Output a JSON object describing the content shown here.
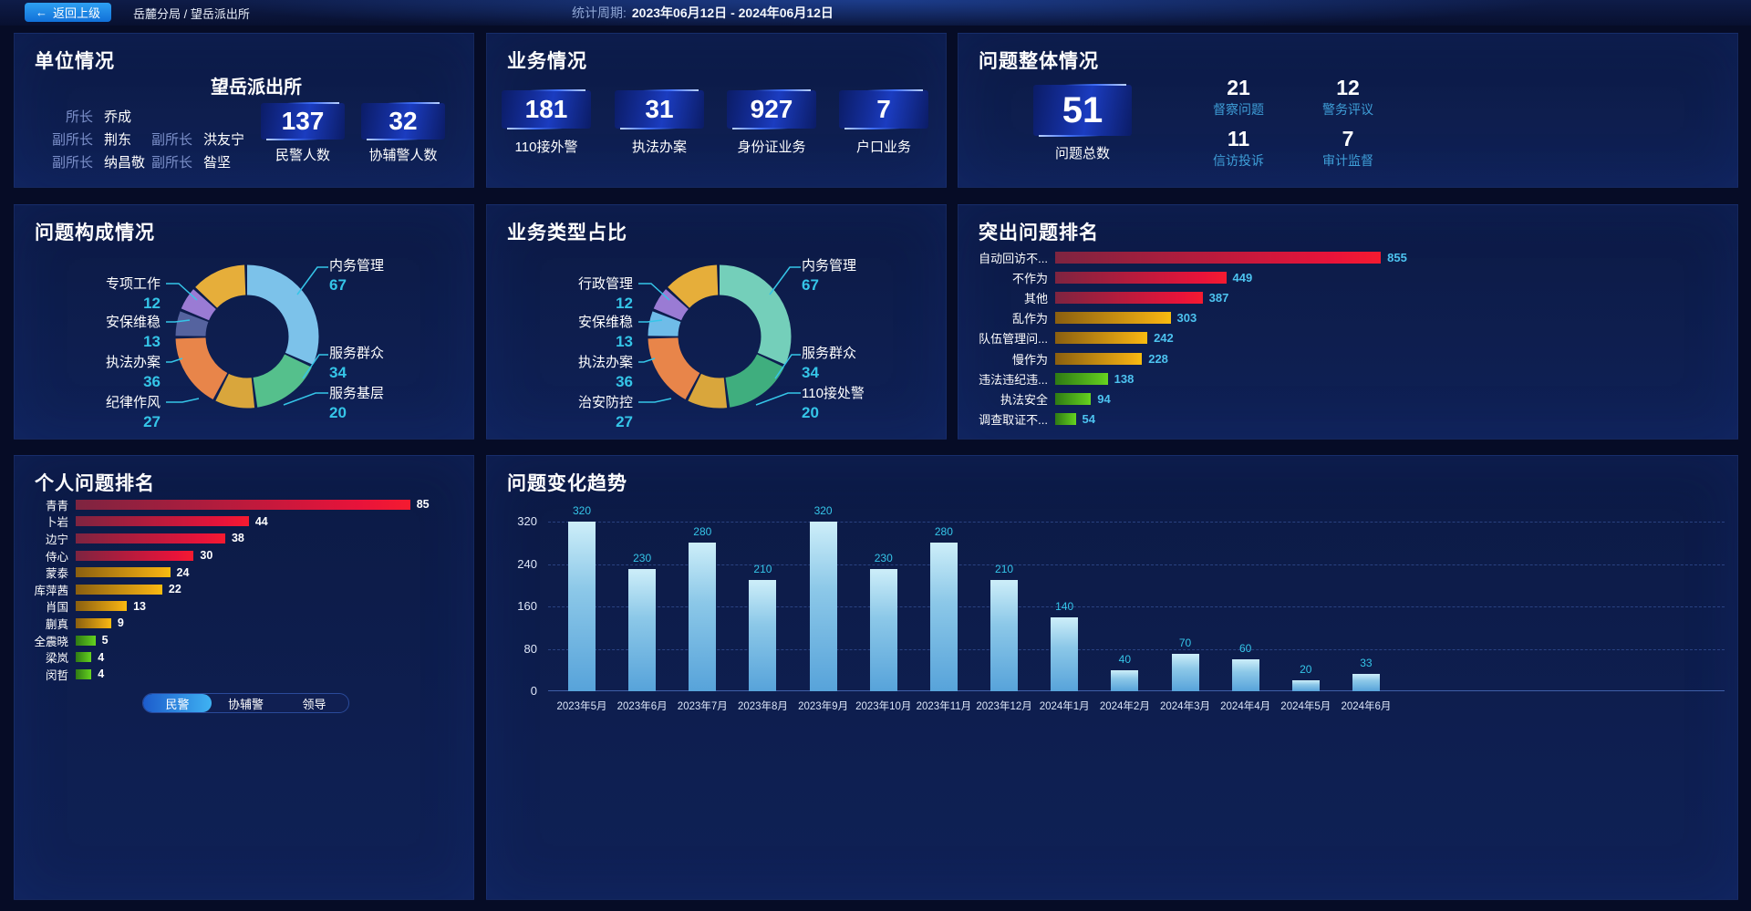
{
  "topbar": {
    "back_label": "返回上级",
    "breadcrumb": "岳麓分局 / 望岳派出所",
    "period_label": "统计周期:",
    "period_value": "2023年06月12日 - 2024年06月12日"
  },
  "unit": {
    "title": "单位情况",
    "station": "望岳派出所",
    "leaders": [
      {
        "role": "所长",
        "name": "乔成"
      },
      {
        "role": "副所长",
        "name": "荆东"
      },
      {
        "role": "副所长",
        "name": "洪友宁"
      },
      {
        "role": "副所长",
        "name": "纳昌敬"
      },
      {
        "role": "副所长",
        "name": "昝坚"
      }
    ],
    "stats": [
      {
        "value": "137",
        "label": "民警人数"
      },
      {
        "value": "32",
        "label": "协辅警人数"
      }
    ]
  },
  "business": {
    "title": "业务情况",
    "stats": [
      {
        "value": "181",
        "label": "110接外警"
      },
      {
        "value": "31",
        "label": "执法办案"
      },
      {
        "value": "927",
        "label": "身份证业务"
      },
      {
        "value": "7",
        "label": "户口业务"
      }
    ]
  },
  "issues": {
    "title": "问题整体情况",
    "total_value": "51",
    "total_label": "问题总数",
    "stats": [
      {
        "value": "21",
        "label": "督察问题"
      },
      {
        "value": "12",
        "label": "警务评议"
      },
      {
        "value": "11",
        "label": "信访投诉"
      },
      {
        "value": "7",
        "label": "审计监督"
      }
    ]
  },
  "personal_tabs": [
    "民警",
    "协辅警",
    "领导"
  ],
  "colors": {
    "accent_cyan": "#35c5e8",
    "value_blue": "#4dc3f0",
    "label_cyan": "#3f9fd8",
    "bar_red": "#e8133a",
    "bar_gold": "#f0ae12",
    "bar_green": "#5fc91e",
    "trend_bar": "#8cc8e8"
  },
  "chart_data": [
    {
      "type": "pie",
      "title": "问题构成情况",
      "labels": [
        "内务管理",
        "服务群众",
        "服务基层",
        "执法办案",
        "安保维稳",
        "专项工作",
        "纪律作风"
      ],
      "values": [
        67,
        34,
        20,
        36,
        13,
        12,
        27
      ],
      "colors": [
        "#7cc2ea",
        "#55c08c",
        "#d9a63c",
        "#e8854a",
        "#55639f",
        "#9a7bd4",
        "#e6ae3a"
      ],
      "legend_position": "callout-labels"
    },
    {
      "type": "pie",
      "title": "业务类型占比",
      "labels": [
        "内务管理",
        "服务群众",
        "110接处警",
        "执法办案",
        "安保维稳",
        "行政管理",
        "治安防控"
      ],
      "values": [
        67,
        34,
        20,
        36,
        13,
        12,
        27
      ],
      "colors": [
        "#74cfba",
        "#3fae7e",
        "#d9a63c",
        "#e8854a",
        "#6fbce8",
        "#9a7bd4",
        "#e6ae3a"
      ],
      "legend_position": "callout-labels"
    },
    {
      "type": "bar",
      "orientation": "horizontal",
      "title": "突出问题排名",
      "categories": [
        "自动回访不...",
        "不作为",
        "其他",
        "乱作为",
        "队伍管理问...",
        "慢作为",
        "违法违纪违...",
        "执法安全",
        "调查取证不..."
      ],
      "values": [
        855,
        449,
        387,
        303,
        242,
        228,
        138,
        94,
        54
      ],
      "tiers": [
        "red",
        "red",
        "red",
        "gold",
        "gold",
        "gold",
        "green",
        "green",
        "green"
      ]
    },
    {
      "type": "bar",
      "orientation": "horizontal",
      "title": "个人问题排名",
      "categories": [
        "青青",
        "卜岩",
        "边宁",
        "侍心",
        "蒙泰",
        "库萍茜",
        "肖国",
        "蒯真",
        "全震晓",
        "梁岚",
        "闵哲"
      ],
      "values": [
        85,
        44,
        38,
        30,
        24,
        22,
        13,
        9,
        5,
        4,
        4
      ],
      "tiers": [
        "red",
        "red",
        "red",
        "red",
        "gold",
        "gold",
        "gold",
        "gold",
        "green",
        "green",
        "green"
      ]
    },
    {
      "type": "bar",
      "orientation": "vertical",
      "title": "问题变化趋势",
      "categories": [
        "2023年5月",
        "2023年6月",
        "2023年7月",
        "2023年8月",
        "2023年9月",
        "2023年10月",
        "2023年11月",
        "2023年12月",
        "2024年1月",
        "2024年2月",
        "2024年3月",
        "2024年4月",
        "2024年5月",
        "2024年6月"
      ],
      "values": [
        320,
        230,
        280,
        210,
        320,
        230,
        280,
        210,
        140,
        40,
        70,
        60,
        20,
        33
      ],
      "ylim": [
        0,
        320
      ],
      "y_ticks": [
        320,
        240,
        160,
        80,
        0
      ],
      "grid": true
    }
  ]
}
